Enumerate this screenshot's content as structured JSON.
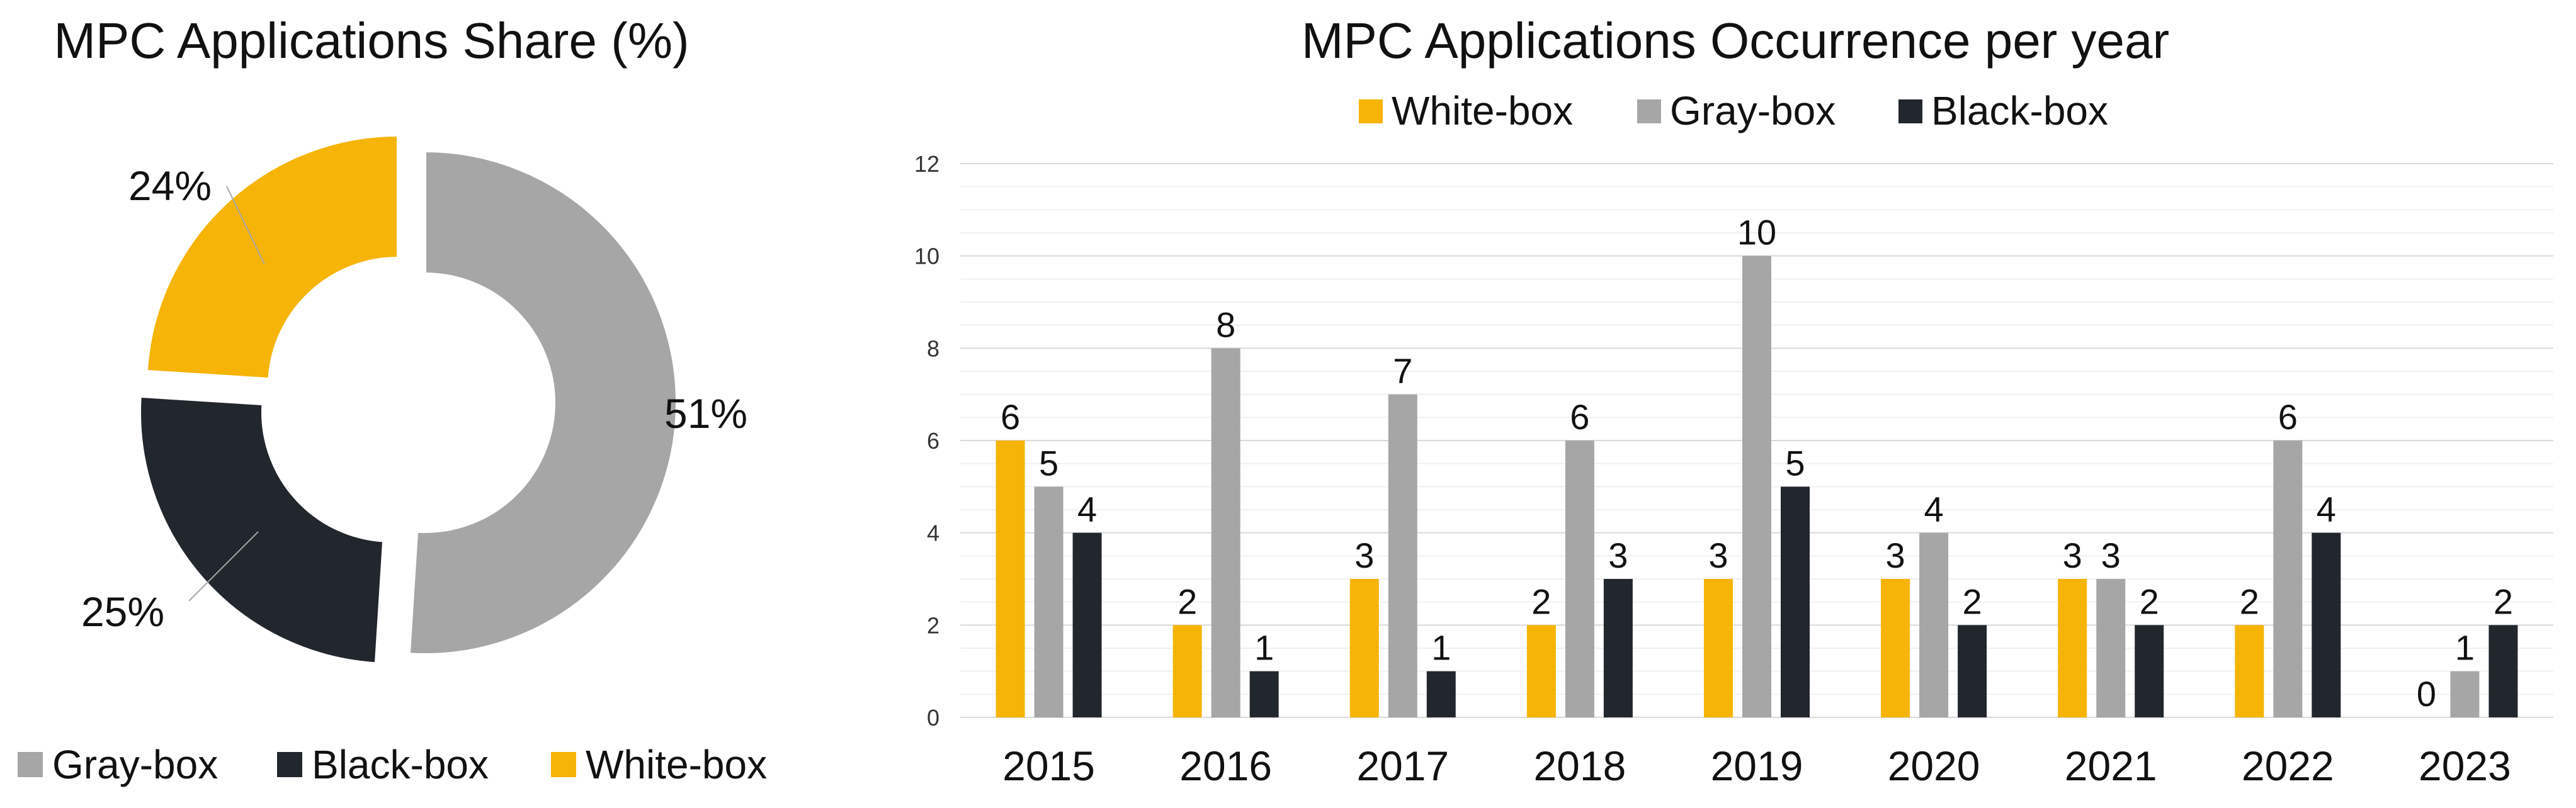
{
  "colors": {
    "white_box": "#f5b406",
    "gray_box": "#a6a6a6",
    "black_box": "#22262d"
  },
  "chart_data": [
    {
      "type": "pie",
      "title": "MPC Applications Share (%)",
      "slices": [
        {
          "name": "Gray-box",
          "value": 51,
          "label": "51%"
        },
        {
          "name": "Black-box",
          "value": 25,
          "label": "25%"
        },
        {
          "name": "White-box",
          "value": 24,
          "label": "24%"
        }
      ],
      "legend": [
        "Gray-box",
        "Black-box",
        "White-box"
      ],
      "legend_position": "bottom"
    },
    {
      "type": "bar",
      "title": "MPC Applications Occurrence per year",
      "categories": [
        "2015",
        "2016",
        "2017",
        "2018",
        "2019",
        "2020",
        "2021",
        "2022",
        "2023"
      ],
      "series": [
        {
          "name": "White-box",
          "values": [
            6,
            2,
            3,
            2,
            3,
            3,
            3,
            2,
            0
          ]
        },
        {
          "name": "Gray-box",
          "values": [
            5,
            8,
            7,
            6,
            10,
            4,
            3,
            6,
            1
          ]
        },
        {
          "name": "Black-box",
          "values": [
            4,
            1,
            1,
            3,
            5,
            2,
            2,
            4,
            2
          ]
        }
      ],
      "yticks": [
        "0",
        "2",
        "4",
        "6",
        "8",
        "10",
        "12"
      ],
      "ylim": [
        0,
        12
      ],
      "xlabel": "",
      "ylabel": "",
      "legend_position": "top"
    }
  ]
}
